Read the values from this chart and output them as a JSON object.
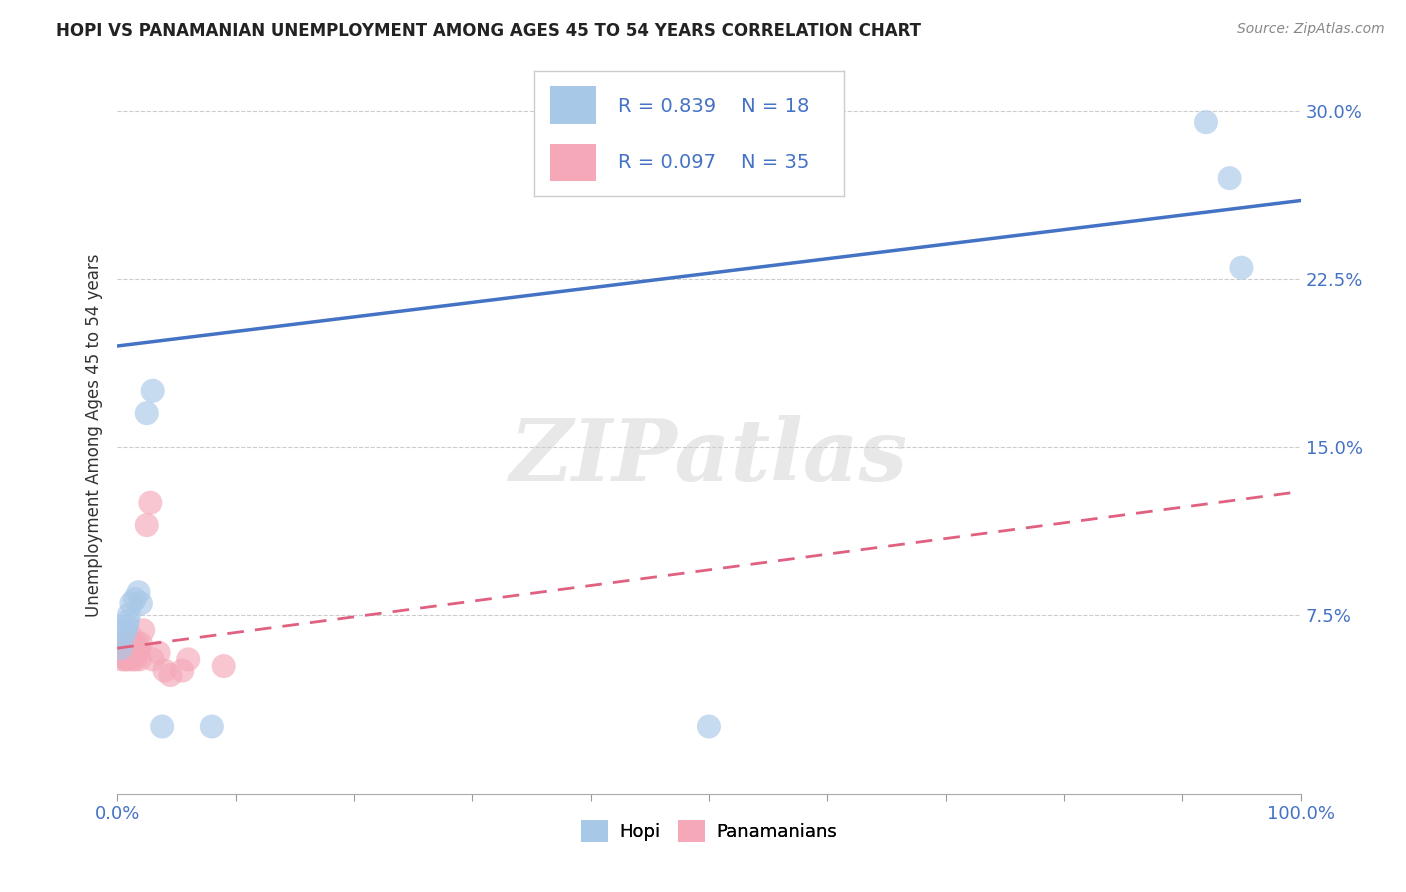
{
  "title": "HOPI VS PANAMANIAN UNEMPLOYMENT AMONG AGES 45 TO 54 YEARS CORRELATION CHART",
  "source": "Source: ZipAtlas.com",
  "ylabel": "Unemployment Among Ages 45 to 54 years",
  "hopi_color": "#a8c8e8",
  "panamanian_color": "#f4a8b8",
  "hopi_line_color": "#4472c4",
  "panamanian_line_color": "#e06080",
  "watermark": "ZIPatlas",
  "xlim": [
    0.0,
    1.0
  ],
  "ylim": [
    -0.005,
    0.315
  ],
  "hopi_scatter_x": [
    0.003,
    0.005,
    0.007,
    0.008,
    0.009,
    0.01,
    0.012,
    0.015,
    0.018,
    0.02,
    0.025,
    0.03,
    0.038,
    0.08,
    0.5,
    0.92,
    0.94,
    0.95
  ],
  "hopi_scatter_y": [
    0.06,
    0.065,
    0.068,
    0.07,
    0.072,
    0.075,
    0.08,
    0.082,
    0.085,
    0.08,
    0.165,
    0.175,
    0.025,
    0.025,
    0.025,
    0.295,
    0.27,
    0.23
  ],
  "pana_scatter_x": [
    0.002,
    0.003,
    0.004,
    0.005,
    0.005,
    0.006,
    0.006,
    0.007,
    0.007,
    0.008,
    0.008,
    0.009,
    0.01,
    0.01,
    0.011,
    0.012,
    0.013,
    0.014,
    0.015,
    0.015,
    0.016,
    0.017,
    0.018,
    0.019,
    0.02,
    0.022,
    0.025,
    0.028,
    0.03,
    0.035,
    0.04,
    0.045,
    0.055,
    0.06,
    0.09
  ],
  "pana_scatter_y": [
    0.058,
    0.06,
    0.055,
    0.062,
    0.058,
    0.056,
    0.06,
    0.062,
    0.055,
    0.06,
    0.058,
    0.055,
    0.062,
    0.058,
    0.06,
    0.065,
    0.055,
    0.058,
    0.06,
    0.055,
    0.062,
    0.058,
    0.06,
    0.055,
    0.062,
    0.068,
    0.115,
    0.125,
    0.055,
    0.058,
    0.05,
    0.048,
    0.05,
    0.055,
    0.052
  ],
  "hopi_line_x0": 0.0,
  "hopi_line_y0": 0.195,
  "hopi_line_x1": 1.0,
  "hopi_line_y1": 0.26,
  "pana_line_x0": 0.0,
  "pana_line_y0": 0.06,
  "pana_line_x1": 1.0,
  "pana_line_y1": 0.13,
  "background_color": "#ffffff",
  "grid_color": "#cccccc",
  "yticks": [
    0.075,
    0.15,
    0.225,
    0.3
  ],
  "xtick_labels_show": [
    0.0,
    1.0
  ],
  "title_fontsize": 12,
  "tick_fontsize": 13
}
